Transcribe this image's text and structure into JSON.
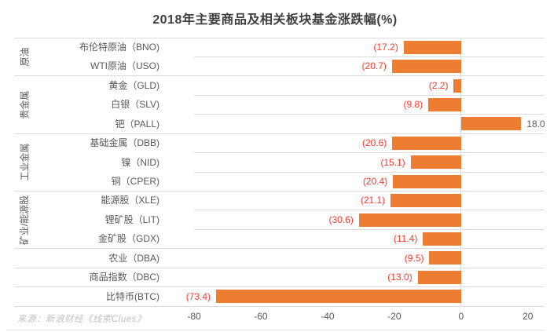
{
  "chart_data": {
    "type": "bar",
    "orientation": "horizontal",
    "title": "2018年主要商品及相关板块基金涨跌幅(%)",
    "source": "来源：新浪财经《线索Clues》",
    "xlim": [
      -80,
      25
    ],
    "x_ticks": [
      -80,
      -60,
      -40,
      -20,
      0,
      20
    ],
    "grid": "category-separators",
    "legend": "none",
    "bar_color": "#ED7D31",
    "negative_label_color": "#FB3B2E",
    "positive_label_color": "#595959",
    "groups": [
      {
        "label": "原油",
        "items": [
          {
            "label": "布伦特原油（BNO)",
            "value": -17.2,
            "display": "(17.2)"
          },
          {
            "label": "WTI原油（USO)",
            "value": -20.7,
            "display": "(20.7)"
          }
        ]
      },
      {
        "label": "贵金属",
        "items": [
          {
            "label": "黄金（GLD)",
            "value": -2.2,
            "display": "(2.2)"
          },
          {
            "label": "白银（SLV)",
            "value": -9.8,
            "display": "(9.8)"
          },
          {
            "label": "钯（PALL)",
            "value": 18.0,
            "display": "18.0"
          }
        ]
      },
      {
        "label": "工业金属",
        "items": [
          {
            "label": "基础金属（DBB)",
            "value": -20.6,
            "display": "(20.6)"
          },
          {
            "label": "镍（NID)",
            "value": -15.1,
            "display": "(15.1)"
          },
          {
            "label": "铜（CPER)",
            "value": -20.4,
            "display": "(20.4)"
          }
        ]
      },
      {
        "label": "矿业/能源股",
        "items": [
          {
            "label": "能源股（XLE)",
            "value": -21.1,
            "display": "(21.1)"
          },
          {
            "label": "锂矿股（LIT)",
            "value": -30.6,
            "display": "(30.6)"
          },
          {
            "label": "金矿股（GDX)",
            "value": -11.4,
            "display": "(11.4)"
          }
        ]
      },
      {
        "label": "",
        "items": [
          {
            "label": "农业（DBA)",
            "value": -9.5,
            "display": "(9.5)"
          }
        ]
      },
      {
        "label": "",
        "items": [
          {
            "label": "商品指数（DBC)",
            "value": -13.0,
            "display": "(13.0)"
          }
        ]
      },
      {
        "label": "",
        "items": [
          {
            "label": "比特币(BTC)",
            "value": -73.4,
            "display": "(73.4)"
          }
        ]
      }
    ]
  }
}
